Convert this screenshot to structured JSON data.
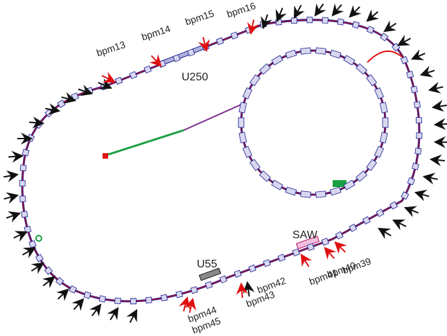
{
  "labels": {
    "bpm13": "bpm13",
    "bpm14": "bpm14",
    "bpm15": "bpm15",
    "bpm16": "bpm16",
    "u250": "U250",
    "saw": "SAW",
    "u55": "U55",
    "bpm39": "bpm39",
    "bpm40": "bpm40",
    "bpm41": "bpm41",
    "bpm42": "bpm42",
    "bpm43": "bpm43",
    "bpm44": "bpm44",
    "bpm45": "bpm45"
  }
}
